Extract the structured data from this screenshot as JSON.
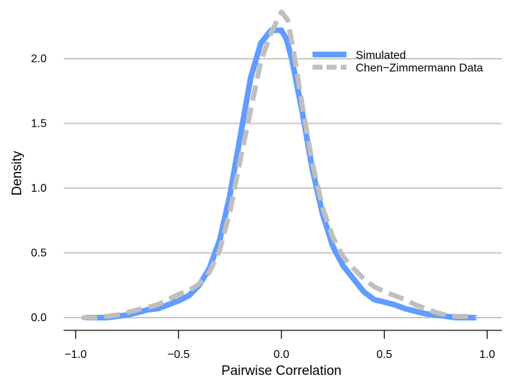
{
  "chart_data": {
    "type": "line",
    "title": "",
    "xlabel": "Pairwise Correlation",
    "ylabel": "Density",
    "xlim": [
      -1.0,
      1.0
    ],
    "ylim": [
      0.0,
      2.3
    ],
    "x_ticks": [
      -1.0,
      -0.5,
      0.0,
      0.5,
      1.0
    ],
    "x_tick_labels": [
      "−1.0",
      "−0.5",
      "0.0",
      "0.5",
      "1.0"
    ],
    "y_ticks": [
      0.0,
      0.5,
      1.0,
      1.5,
      2.0
    ],
    "y_tick_labels": [
      "0.0",
      "0.5",
      "1.0",
      "1.5",
      "2.0"
    ],
    "grid": "horizontal",
    "legend_position": "top-right",
    "series": [
      {
        "name": "Simulated",
        "color": "#619cff",
        "style": "solid",
        "x": [
          -0.95,
          -0.9,
          -0.85,
          -0.8,
          -0.75,
          -0.7,
          -0.65,
          -0.6,
          -0.55,
          -0.5,
          -0.45,
          -0.4,
          -0.35,
          -0.3,
          -0.25,
          -0.2,
          -0.15,
          -0.1,
          -0.05,
          0.0,
          0.025,
          0.05,
          0.1,
          0.15,
          0.2,
          0.25,
          0.3,
          0.35,
          0.4,
          0.45,
          0.5,
          0.55,
          0.6,
          0.65,
          0.7,
          0.75,
          0.8,
          0.85,
          0.9,
          0.95
        ],
        "values": [
          0.0,
          0.0,
          0.0,
          0.01,
          0.02,
          0.04,
          0.06,
          0.07,
          0.1,
          0.13,
          0.17,
          0.25,
          0.38,
          0.6,
          0.95,
          1.4,
          1.85,
          2.12,
          2.22,
          2.22,
          2.15,
          2.0,
          1.6,
          1.15,
          0.8,
          0.55,
          0.4,
          0.3,
          0.2,
          0.14,
          0.12,
          0.1,
          0.07,
          0.05,
          0.03,
          0.02,
          0.01,
          0.0,
          0.0,
          0.0
        ]
      },
      {
        "name": "Chen−Zimmermann Data",
        "color": "#bfbfbf",
        "style": "dashed",
        "x": [
          -0.97,
          -0.9,
          -0.85,
          -0.8,
          -0.75,
          -0.7,
          -0.65,
          -0.6,
          -0.55,
          -0.5,
          -0.45,
          -0.4,
          -0.35,
          -0.3,
          -0.25,
          -0.2,
          -0.15,
          -0.1,
          -0.05,
          0.0,
          0.03,
          0.06,
          0.1,
          0.15,
          0.2,
          0.25,
          0.3,
          0.35,
          0.4,
          0.45,
          0.5,
          0.55,
          0.6,
          0.65,
          0.7,
          0.75,
          0.8,
          0.85,
          0.9,
          0.95
        ],
        "values": [
          0.0,
          0.0,
          0.01,
          0.02,
          0.04,
          0.06,
          0.08,
          0.1,
          0.14,
          0.18,
          0.21,
          0.26,
          0.35,
          0.52,
          0.82,
          1.22,
          1.6,
          1.98,
          2.2,
          2.36,
          2.3,
          2.05,
          1.65,
          1.2,
          0.85,
          0.62,
          0.47,
          0.38,
          0.3,
          0.24,
          0.2,
          0.17,
          0.14,
          0.1,
          0.07,
          0.04,
          0.02,
          0.01,
          0.01,
          0.0
        ]
      }
    ]
  }
}
